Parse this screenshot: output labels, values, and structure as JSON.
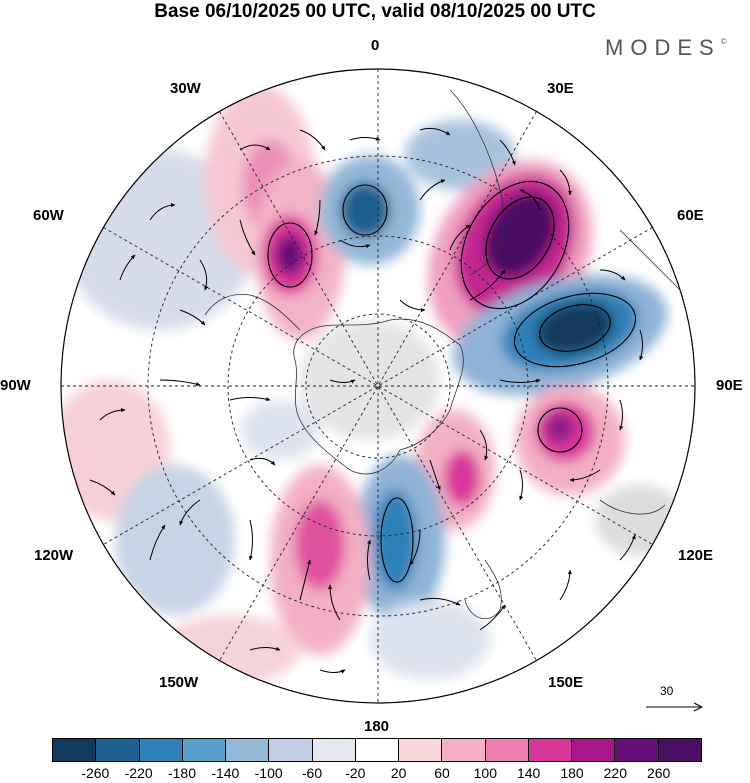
{
  "header": {
    "title": "Base 06/10/2025 00 UTC, valid 08/10/2025 00 UTC",
    "brand": "MODES",
    "brand_mark": "©"
  },
  "map": {
    "projection": "south-polar-stereographic",
    "longitude_labels": {
      "top": "0",
      "top_right": "30E",
      "right_upper": "60E",
      "right": "90E",
      "right_lower": "120E",
      "bottom_right": "150E",
      "bottom": "180",
      "bottom_left": "150W",
      "left_lower": "120W",
      "left": "90W",
      "left_upper": "60W",
      "top_left": "30W"
    },
    "reference_vector": "30"
  },
  "colorbar": {
    "tick_labels": [
      "-260",
      "-220",
      "-180",
      "-140",
      "-100",
      "-60",
      "-20",
      "20",
      "60",
      "100",
      "140",
      "180",
      "220",
      "260"
    ],
    "colors": [
      "#123a5c",
      "#1d5f8e",
      "#2f80b8",
      "#5b9fcc",
      "#93b8d8",
      "#c3cfe4",
      "#e6e8f1",
      "#ffffff",
      "#f8d6d9",
      "#f3b0c4",
      "#ec7fb0",
      "#d9369a",
      "#a9188a",
      "#660f79",
      "#4a0f62"
    ]
  }
}
